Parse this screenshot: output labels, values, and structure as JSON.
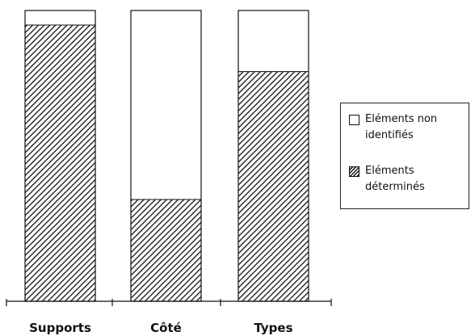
{
  "chart_data": {
    "type": "bar",
    "stacked": true,
    "categories": [
      "Supports",
      "Côté",
      "Types"
    ],
    "series": [
      {
        "name": "Eléments déterminés",
        "values": [
          95,
          35,
          79
        ],
        "pattern": "hatched"
      },
      {
        "name": "Eléments non identifiés",
        "values": [
          5,
          65,
          21
        ],
        "pattern": "empty"
      }
    ],
    "ylim": [
      0,
      100
    ],
    "title": "",
    "xlabel": "",
    "ylabel": "",
    "grid": false,
    "legend_position": "right"
  },
  "legend": {
    "items": [
      {
        "label": "Eléments non identifiés",
        "pattern": "empty"
      },
      {
        "label": "Eléments déterminés",
        "pattern": "hatched"
      }
    ]
  },
  "colors": {
    "ink": "#111111",
    "background": "#ffffff"
  }
}
